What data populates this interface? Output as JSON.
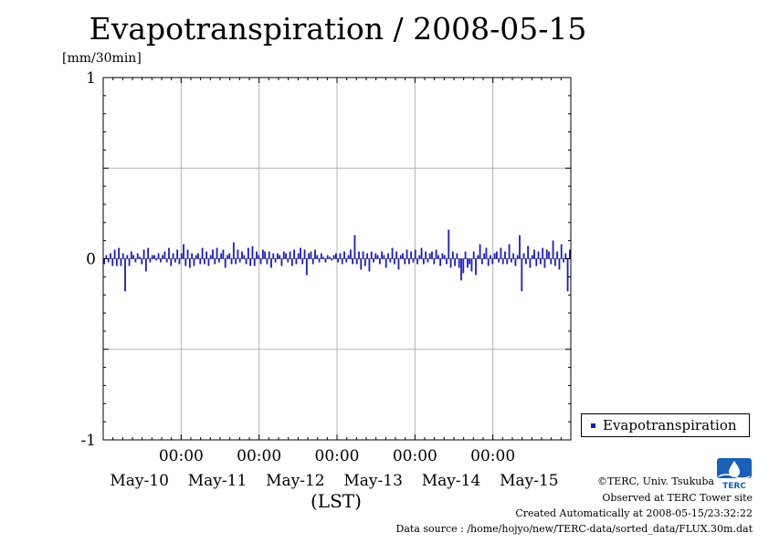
{
  "title": "Evapotranspiration / 2008-05-15",
  "unit": "[mm/30min]",
  "colors": {
    "series": "#1a1ac8",
    "grid": "#b4b4b4",
    "logo": "#1a5fb8"
  },
  "legend": {
    "label": "Evapotranspiration"
  },
  "footer": {
    "copyright": "©TERC, Univ. Tsukuba",
    "observed": "Observed at TERC Tower site",
    "created": "Created Automatically at 2008-05-15/23:32:22",
    "source": "Data source : /home/hojyo/new/TERC-data/sorted_data/FLUX.30m.dat"
  },
  "logo_text": "TERC",
  "chart_data": {
    "type": "bar",
    "title": "Evapotranspiration / 2008-05-15",
    "ylabel": "[mm/30min]",
    "xlabel": "(LST)",
    "ylim": [
      -1,
      1
    ],
    "yticks": [
      1,
      0,
      -1
    ],
    "x_time_ticks": [
      "00:00",
      "00:00",
      "00:00",
      "00:00",
      "00:00"
    ],
    "x_date_labels": [
      "May-10",
      "May-11",
      "May-12",
      "May-13",
      "May-14",
      "May-15"
    ],
    "grid": true,
    "legend_position": "right",
    "x_range_days": [
      0,
      6
    ],
    "series": [
      {
        "name": "Evapotranspiration",
        "interval": "30min",
        "values": [
          -0.03,
          0.02,
          -0.02,
          0.03,
          -0.04,
          0.05,
          -0.04,
          0.06,
          -0.04,
          0.03,
          -0.18,
          0.02,
          -0.04,
          0.04,
          0.02,
          -0.02,
          0.03,
          0.01,
          -0.03,
          0.05,
          -0.07,
          0.06,
          -0.02,
          0.02,
          0.02,
          -0.01,
          0.03,
          -0.02,
          0.02,
          0.04,
          -0.02,
          0.06,
          -0.04,
          0.03,
          -0.02,
          0.05,
          -0.03,
          0.03,
          0.08,
          -0.04,
          0.05,
          -0.05,
          0.03,
          -0.04,
          0.02,
          0.03,
          -0.03,
          0.06,
          -0.03,
          0.04,
          -0.04,
          0.02,
          0.05,
          -0.03,
          0.06,
          -0.02,
          0.03,
          0.05,
          -0.05,
          0.02,
          0.03,
          -0.03,
          0.09,
          -0.03,
          0.05,
          -0.02,
          0.04,
          0.02,
          -0.03,
          0.06,
          -0.04,
          0.07,
          -0.04,
          0.04,
          0.02,
          -0.03,
          0.05,
          0.04,
          -0.03,
          0.04,
          -0.05,
          0.03,
          -0.02,
          0.03,
          0.02,
          -0.04,
          0.04,
          0.03,
          -0.02,
          0.04,
          -0.04,
          0.05,
          -0.03,
          0.03,
          0.06,
          -0.03,
          0.05,
          -0.09,
          0.03,
          0.04,
          -0.03,
          0.05,
          0.02,
          -0.02,
          0.03,
          0.01,
          -0.02,
          0.02,
          0.01,
          -0.01,
          0.02,
          0.03,
          -0.02,
          0.03,
          -0.03,
          0.04,
          -0.02,
          0.02,
          0.05,
          -0.03,
          0.13,
          -0.03,
          0.04,
          -0.06,
          0.04,
          -0.04,
          0.03,
          -0.07,
          0.04,
          -0.02,
          0.03,
          0.02,
          -0.03,
          0.04,
          0.02,
          -0.05,
          0.03,
          -0.02,
          0.06,
          -0.03,
          0.04,
          -0.06,
          0.02,
          0.03,
          -0.03,
          0.05,
          -0.03,
          0.04,
          -0.02,
          0.05,
          -0.03,
          0.02,
          0.06,
          -0.03,
          0.04,
          -0.02,
          0.03,
          0.04,
          -0.03,
          0.05,
          0.02,
          -0.04,
          0.03,
          0.02,
          -0.03,
          0.16,
          -0.05,
          0.04,
          -0.04,
          0.03,
          -0.05,
          -0.12,
          -0.08,
          0.04,
          -0.05,
          -0.03,
          -0.07,
          0.04,
          -0.09,
          0.02,
          0.08,
          -0.03,
          0.03,
          0.06,
          -0.04,
          0.02,
          -0.03,
          0.03,
          0.04,
          -0.02,
          0.06,
          -0.03,
          0.04,
          -0.03,
          0.08,
          -0.02,
          0.03,
          -0.04,
          0.02,
          0.13,
          -0.18,
          0.03,
          -0.03,
          0.07,
          -0.05,
          0.02,
          0.05,
          -0.04,
          0.04,
          -0.03,
          0.06,
          -0.05,
          0.05,
          0.04,
          -0.03,
          0.1,
          -0.04,
          0.04,
          -0.06,
          0.08,
          -0.02,
          0.03,
          -0.18,
          0.05
        ]
      }
    ]
  }
}
